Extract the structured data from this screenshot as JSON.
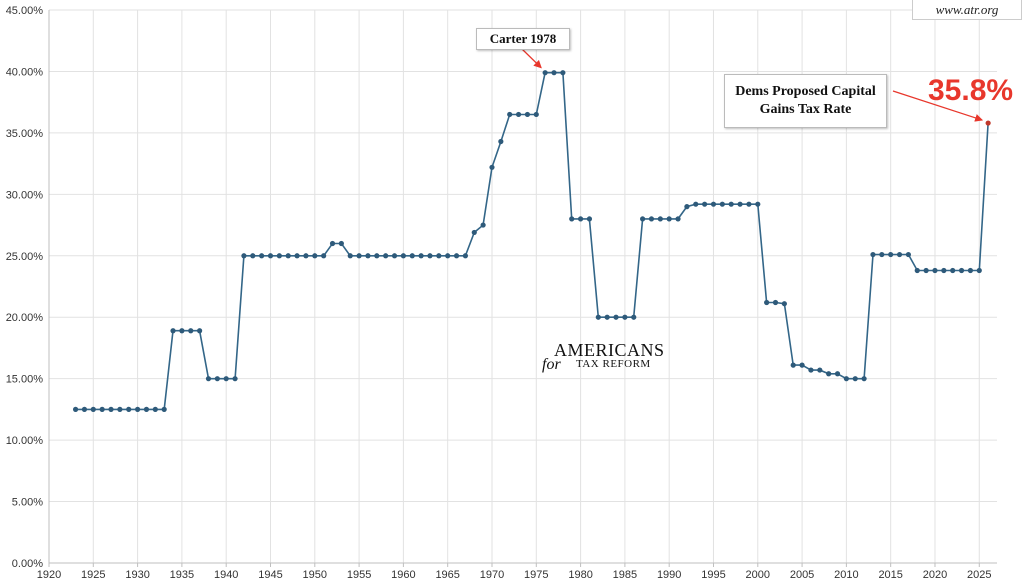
{
  "source": "www.atr.org",
  "logo": {
    "line1": "AMERICANS",
    "line2_script": "for",
    "line2": "TAX REFORM"
  },
  "annotations": {
    "carter": "Carter 1978",
    "dems": "Dems Proposed Capital Gains Tax Rate",
    "dems_value": "35.8%"
  },
  "colors": {
    "line": "#336688",
    "marker": "#2e5a7a",
    "highlight": "#c0392b",
    "arrow": "#e8372c",
    "accent_text": "#e8372c"
  },
  "chart_data": {
    "type": "line",
    "title": "",
    "xlabel": "",
    "ylabel": "",
    "xlim": [
      1920,
      2027
    ],
    "ylim": [
      0,
      45
    ],
    "grid": true,
    "legend": "none",
    "x_ticks": [
      "1920",
      "1925",
      "1930",
      "1935",
      "1940",
      "1945",
      "1950",
      "1955",
      "1960",
      "1965",
      "1970",
      "1975",
      "1980",
      "1985",
      "1990",
      "1995",
      "2000",
      "2005",
      "2010",
      "2015",
      "2020",
      "2025"
    ],
    "y_ticks": [
      "0.00%",
      "5.00%",
      "10.00%",
      "15.00%",
      "20.00%",
      "25.00%",
      "30.00%",
      "35.00%",
      "40.00%",
      "45.00%"
    ],
    "series": [
      {
        "x": [
          1923,
          1924,
          1925,
          1926,
          1927,
          1928,
          1929,
          1930,
          1931,
          1932,
          1933,
          1934,
          1935,
          1936,
          1937,
          1938,
          1939,
          1940,
          1941,
          1942,
          1943,
          1944,
          1945,
          1946,
          1947,
          1948,
          1949,
          1950,
          1951,
          1952,
          1953,
          1954,
          1955,
          1956,
          1957,
          1958,
          1959,
          1960,
          1961,
          1962,
          1963,
          1964,
          1965,
          1966,
          1967,
          1968,
          1969,
          1970,
          1971,
          1972,
          1973,
          1974,
          1975,
          1976,
          1977,
          1978,
          1979,
          1980,
          1981,
          1982,
          1983,
          1984,
          1985,
          1986,
          1987,
          1988,
          1989,
          1990,
          1991,
          1992,
          1993,
          1994,
          1995,
          1996,
          1997,
          1998,
          1999,
          2000,
          2001,
          2002,
          2003,
          2004,
          2005,
          2006,
          2007,
          2008,
          2009,
          2010,
          2011,
          2012,
          2013,
          2014,
          2015,
          2016,
          2017,
          2018,
          2019,
          2020,
          2021,
          2022,
          2023,
          2024,
          2025,
          2026
        ],
        "values": [
          12.5,
          12.5,
          12.5,
          12.5,
          12.5,
          12.5,
          12.5,
          12.5,
          12.5,
          12.5,
          12.5,
          18.9,
          18.9,
          18.9,
          18.9,
          15,
          15,
          15,
          15,
          25,
          25,
          25,
          25,
          25,
          25,
          25,
          25,
          25,
          25,
          26,
          26,
          25,
          25,
          25,
          25,
          25,
          25,
          25,
          25,
          25,
          25,
          25,
          25,
          25,
          25,
          26.9,
          27.5,
          32.2,
          34.3,
          36.5,
          36.5,
          36.5,
          36.5,
          39.9,
          39.9,
          39.9,
          28,
          28,
          28,
          20,
          20,
          20,
          20,
          20,
          28,
          28,
          28,
          28,
          28,
          29,
          29.2,
          29.2,
          29.2,
          29.2,
          29.2,
          29.2,
          29.2,
          29.2,
          21.2,
          21.2,
          21.1,
          16.1,
          16.1,
          15.7,
          15.7,
          15.4,
          15.4,
          15,
          15,
          15,
          25.1,
          25.1,
          25.1,
          25.1,
          25.1,
          23.8,
          23.8,
          23.8,
          23.8,
          23.8,
          23.8,
          23.8,
          23.8,
          35.8
        ]
      }
    ]
  }
}
